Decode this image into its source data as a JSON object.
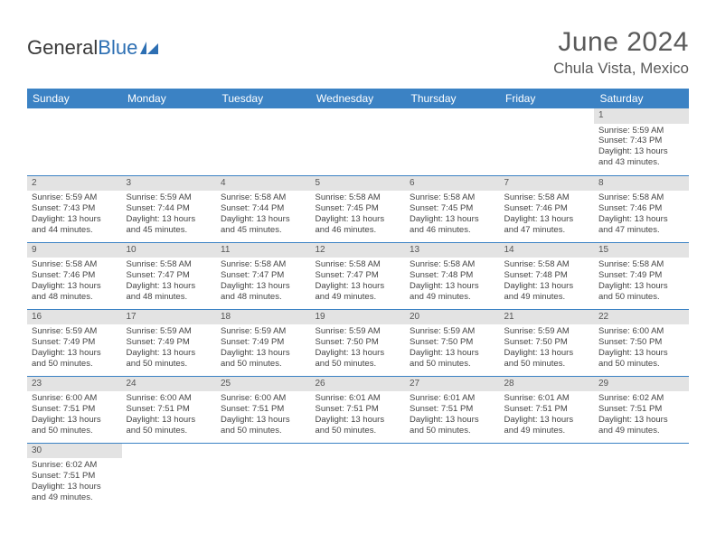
{
  "logo": {
    "text1": "General",
    "text2": "Blue"
  },
  "title": "June 2024",
  "location": "Chula Vista, Mexico",
  "colors": {
    "header_bg": "#3b82c4",
    "header_text": "#ffffff",
    "daynum_bg": "#e3e3e3",
    "border": "#3b82c4",
    "body_text": "#444",
    "title_text": "#5a5a5a",
    "logo_gray": "#3a3a3a",
    "logo_blue": "#2d6fb3"
  },
  "weekdays": [
    "Sunday",
    "Monday",
    "Tuesday",
    "Wednesday",
    "Thursday",
    "Friday",
    "Saturday"
  ],
  "weeks": [
    [
      null,
      null,
      null,
      null,
      null,
      null,
      {
        "n": "1",
        "sr": "Sunrise: 5:59 AM",
        "ss": "Sunset: 7:43 PM",
        "d1": "Daylight: 13 hours",
        "d2": "and 43 minutes."
      }
    ],
    [
      {
        "n": "2",
        "sr": "Sunrise: 5:59 AM",
        "ss": "Sunset: 7:43 PM",
        "d1": "Daylight: 13 hours",
        "d2": "and 44 minutes."
      },
      {
        "n": "3",
        "sr": "Sunrise: 5:59 AM",
        "ss": "Sunset: 7:44 PM",
        "d1": "Daylight: 13 hours",
        "d2": "and 45 minutes."
      },
      {
        "n": "4",
        "sr": "Sunrise: 5:58 AM",
        "ss": "Sunset: 7:44 PM",
        "d1": "Daylight: 13 hours",
        "d2": "and 45 minutes."
      },
      {
        "n": "5",
        "sr": "Sunrise: 5:58 AM",
        "ss": "Sunset: 7:45 PM",
        "d1": "Daylight: 13 hours",
        "d2": "and 46 minutes."
      },
      {
        "n": "6",
        "sr": "Sunrise: 5:58 AM",
        "ss": "Sunset: 7:45 PM",
        "d1": "Daylight: 13 hours",
        "d2": "and 46 minutes."
      },
      {
        "n": "7",
        "sr": "Sunrise: 5:58 AM",
        "ss": "Sunset: 7:46 PM",
        "d1": "Daylight: 13 hours",
        "d2": "and 47 minutes."
      },
      {
        "n": "8",
        "sr": "Sunrise: 5:58 AM",
        "ss": "Sunset: 7:46 PM",
        "d1": "Daylight: 13 hours",
        "d2": "and 47 minutes."
      }
    ],
    [
      {
        "n": "9",
        "sr": "Sunrise: 5:58 AM",
        "ss": "Sunset: 7:46 PM",
        "d1": "Daylight: 13 hours",
        "d2": "and 48 minutes."
      },
      {
        "n": "10",
        "sr": "Sunrise: 5:58 AM",
        "ss": "Sunset: 7:47 PM",
        "d1": "Daylight: 13 hours",
        "d2": "and 48 minutes."
      },
      {
        "n": "11",
        "sr": "Sunrise: 5:58 AM",
        "ss": "Sunset: 7:47 PM",
        "d1": "Daylight: 13 hours",
        "d2": "and 48 minutes."
      },
      {
        "n": "12",
        "sr": "Sunrise: 5:58 AM",
        "ss": "Sunset: 7:47 PM",
        "d1": "Daylight: 13 hours",
        "d2": "and 49 minutes."
      },
      {
        "n": "13",
        "sr": "Sunrise: 5:58 AM",
        "ss": "Sunset: 7:48 PM",
        "d1": "Daylight: 13 hours",
        "d2": "and 49 minutes."
      },
      {
        "n": "14",
        "sr": "Sunrise: 5:58 AM",
        "ss": "Sunset: 7:48 PM",
        "d1": "Daylight: 13 hours",
        "d2": "and 49 minutes."
      },
      {
        "n": "15",
        "sr": "Sunrise: 5:58 AM",
        "ss": "Sunset: 7:49 PM",
        "d1": "Daylight: 13 hours",
        "d2": "and 50 minutes."
      }
    ],
    [
      {
        "n": "16",
        "sr": "Sunrise: 5:59 AM",
        "ss": "Sunset: 7:49 PM",
        "d1": "Daylight: 13 hours",
        "d2": "and 50 minutes."
      },
      {
        "n": "17",
        "sr": "Sunrise: 5:59 AM",
        "ss": "Sunset: 7:49 PM",
        "d1": "Daylight: 13 hours",
        "d2": "and 50 minutes."
      },
      {
        "n": "18",
        "sr": "Sunrise: 5:59 AM",
        "ss": "Sunset: 7:49 PM",
        "d1": "Daylight: 13 hours",
        "d2": "and 50 minutes."
      },
      {
        "n": "19",
        "sr": "Sunrise: 5:59 AM",
        "ss": "Sunset: 7:50 PM",
        "d1": "Daylight: 13 hours",
        "d2": "and 50 minutes."
      },
      {
        "n": "20",
        "sr": "Sunrise: 5:59 AM",
        "ss": "Sunset: 7:50 PM",
        "d1": "Daylight: 13 hours",
        "d2": "and 50 minutes."
      },
      {
        "n": "21",
        "sr": "Sunrise: 5:59 AM",
        "ss": "Sunset: 7:50 PM",
        "d1": "Daylight: 13 hours",
        "d2": "and 50 minutes."
      },
      {
        "n": "22",
        "sr": "Sunrise: 6:00 AM",
        "ss": "Sunset: 7:50 PM",
        "d1": "Daylight: 13 hours",
        "d2": "and 50 minutes."
      }
    ],
    [
      {
        "n": "23",
        "sr": "Sunrise: 6:00 AM",
        "ss": "Sunset: 7:51 PM",
        "d1": "Daylight: 13 hours",
        "d2": "and 50 minutes."
      },
      {
        "n": "24",
        "sr": "Sunrise: 6:00 AM",
        "ss": "Sunset: 7:51 PM",
        "d1": "Daylight: 13 hours",
        "d2": "and 50 minutes."
      },
      {
        "n": "25",
        "sr": "Sunrise: 6:00 AM",
        "ss": "Sunset: 7:51 PM",
        "d1": "Daylight: 13 hours",
        "d2": "and 50 minutes."
      },
      {
        "n": "26",
        "sr": "Sunrise: 6:01 AM",
        "ss": "Sunset: 7:51 PM",
        "d1": "Daylight: 13 hours",
        "d2": "and 50 minutes."
      },
      {
        "n": "27",
        "sr": "Sunrise: 6:01 AM",
        "ss": "Sunset: 7:51 PM",
        "d1": "Daylight: 13 hours",
        "d2": "and 50 minutes."
      },
      {
        "n": "28",
        "sr": "Sunrise: 6:01 AM",
        "ss": "Sunset: 7:51 PM",
        "d1": "Daylight: 13 hours",
        "d2": "and 49 minutes."
      },
      {
        "n": "29",
        "sr": "Sunrise: 6:02 AM",
        "ss": "Sunset: 7:51 PM",
        "d1": "Daylight: 13 hours",
        "d2": "and 49 minutes."
      }
    ],
    [
      {
        "n": "30",
        "sr": "Sunrise: 6:02 AM",
        "ss": "Sunset: 7:51 PM",
        "d1": "Daylight: 13 hours",
        "d2": "and 49 minutes."
      },
      null,
      null,
      null,
      null,
      null,
      null
    ]
  ]
}
